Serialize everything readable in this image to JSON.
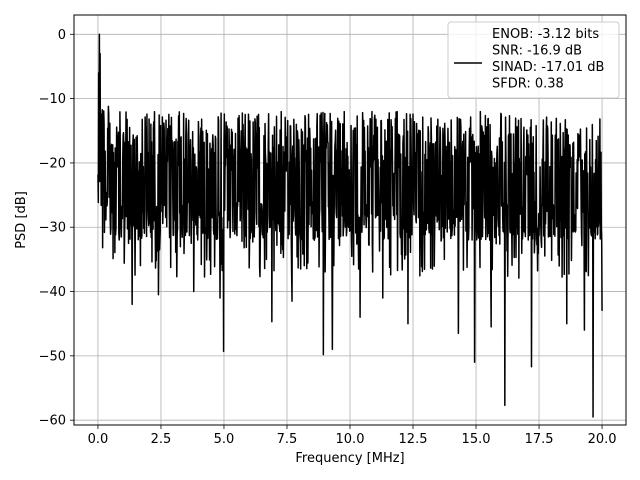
{
  "chart_data": {
    "type": "line",
    "title": "",
    "xlabel": "Frequency [MHz]",
    "ylabel": "PSD [dB]",
    "xlim": [
      -0.95,
      20.95
    ],
    "ylim": [
      -60.75,
      3.0
    ],
    "xticks": [
      0.0,
      2.5,
      5.0,
      7.5,
      10.0,
      12.5,
      15.0,
      17.5,
      20.0
    ],
    "xtick_labels": [
      "0.0",
      "2.5",
      "5.0",
      "7.5",
      "10.0",
      "12.5",
      "15.0",
      "17.5",
      "20.0"
    ],
    "yticks": [
      0,
      -10,
      -20,
      -30,
      -40,
      -50,
      -60
    ],
    "ytick_labels": [
      "0",
      "−10",
      "−20",
      "−30",
      "−40",
      "−50",
      "−60"
    ],
    "grid": true,
    "legend_position": "top-right",
    "series": [
      {
        "name": "ENOB: -3.12 bits\nSNR: -16.9 dB\nSINAD: -17.01 dB\nSFDR: 0.38",
        "color": "#000000",
        "x_range": [
          0.0,
          20.0
        ],
        "noise_floor_range": [
          -32,
          -12
        ],
        "peak": {
          "x": 0.05,
          "y": 0.0
        },
        "dips": [
          {
            "x": 1.35,
            "y": -42.0
          },
          {
            "x": 2.4,
            "y": -40.5
          },
          {
            "x": 3.8,
            "y": -40.0
          },
          {
            "x": 4.85,
            "y": -41.0
          },
          {
            "x": 4.98,
            "y": -49.3
          },
          {
            "x": 6.9,
            "y": -44.7
          },
          {
            "x": 7.7,
            "y": -41.5
          },
          {
            "x": 8.95,
            "y": -49.8
          },
          {
            "x": 9.3,
            "y": -49.0
          },
          {
            "x": 10.4,
            "y": -44.0
          },
          {
            "x": 11.3,
            "y": -41.0
          },
          {
            "x": 12.3,
            "y": -45.0
          },
          {
            "x": 14.3,
            "y": -46.5
          },
          {
            "x": 14.95,
            "y": -51.0
          },
          {
            "x": 15.6,
            "y": -45.5
          },
          {
            "x": 16.15,
            "y": -57.7
          },
          {
            "x": 17.2,
            "y": -51.7
          },
          {
            "x": 18.6,
            "y": -45.0
          },
          {
            "x": 19.3,
            "y": -46.0
          },
          {
            "x": 19.65,
            "y": -59.5
          },
          {
            "x": 20.0,
            "y": -43.0
          }
        ]
      }
    ]
  }
}
